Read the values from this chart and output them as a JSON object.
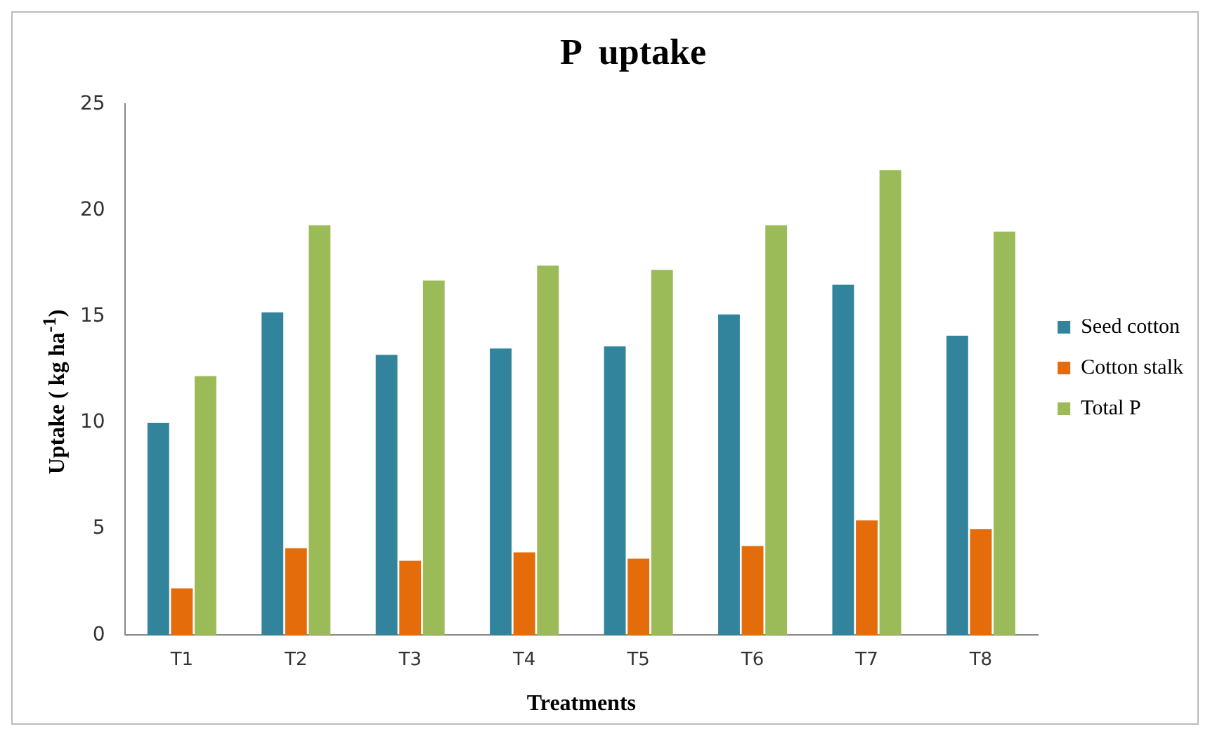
{
  "chart_data": {
    "type": "bar",
    "title": "P  uptake",
    "xlabel": "Treatments",
    "ylabel": "Uptake ( kg ha$^{-1}$)",
    "categories": [
      "T1",
      "T2",
      "T3",
      "T4",
      "T5",
      "T6",
      "T7",
      "T8"
    ],
    "series": [
      {
        "name": "Seed cotton",
        "color": "#31849b",
        "values": [
          10.0,
          15.2,
          13.2,
          13.5,
          13.6,
          15.1,
          16.5,
          14.1
        ]
      },
      {
        "name": "Cotton stalk",
        "color": "#e46c0a",
        "values": [
          2.2,
          4.1,
          3.5,
          3.9,
          3.6,
          4.2,
          5.4,
          5.0
        ]
      },
      {
        "name": "Total P",
        "color": "#9bbb59",
        "values": [
          12.2,
          19.3,
          16.7,
          17.4,
          17.2,
          19.3,
          21.9,
          19.0
        ]
      }
    ],
    "ylim": [
      0,
      25
    ],
    "yticks": [
      0,
      5,
      10,
      15,
      20,
      25
    ],
    "grid": false,
    "legend": "right"
  }
}
